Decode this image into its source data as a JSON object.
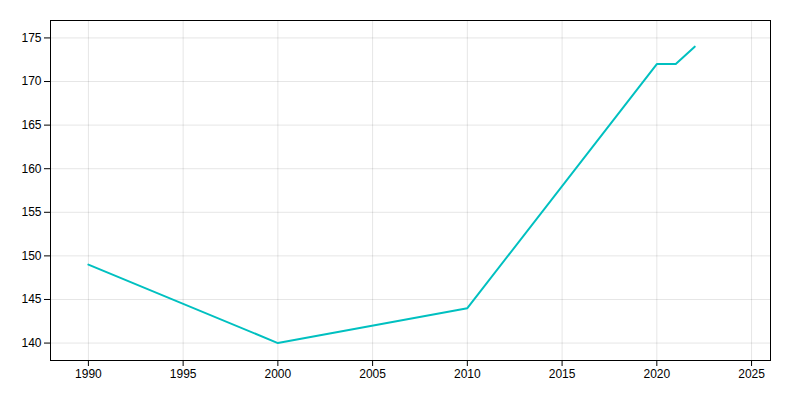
{
  "chart_data": {
    "type": "line",
    "x": [
      1990,
      2000,
      2010,
      2020,
      2021,
      2022
    ],
    "values": [
      149,
      140,
      144,
      172,
      172,
      174
    ],
    "color": "#00C0C0",
    "xlim": [
      1988,
      2026
    ],
    "ylim": [
      138,
      177
    ],
    "xticks": [
      1990,
      1995,
      2000,
      2005,
      2010,
      2015,
      2020,
      2025
    ],
    "yticks": [
      140,
      145,
      150,
      155,
      160,
      165,
      170,
      175
    ],
    "grid": true
  }
}
